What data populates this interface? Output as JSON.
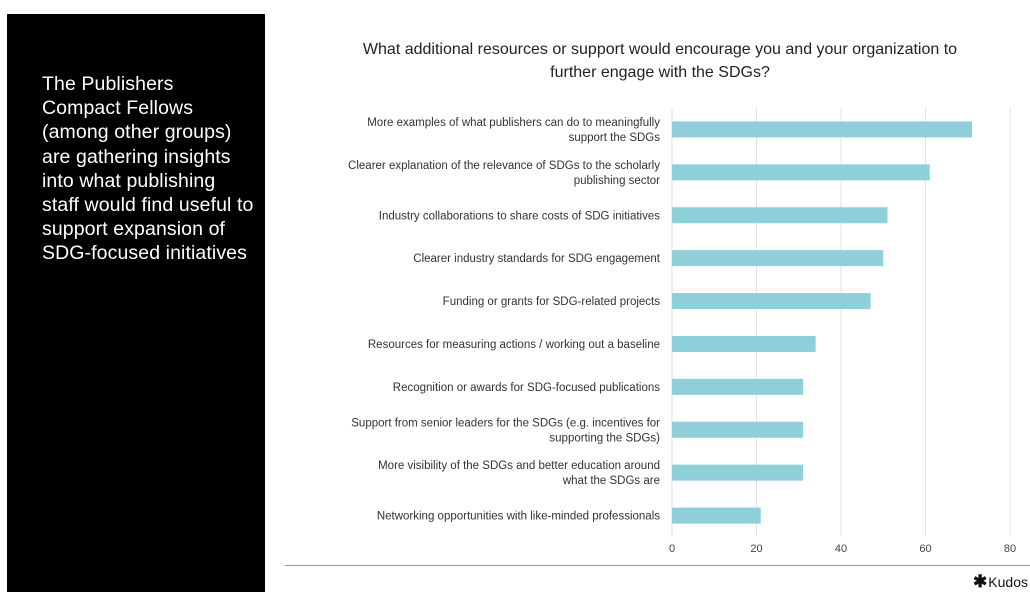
{
  "sidebar": {
    "text": "The Publishers Compact Fellows (among other groups) are gathering insights into what publishing staff would find useful to support expansion of SDG-focused initiatives"
  },
  "brand": {
    "logo_text": "Kudos",
    "logo_mark": "✱"
  },
  "colors": {
    "bar": "#8ecfd9",
    "grid": "#e2e2e2",
    "panel": "#000000"
  },
  "chart_data": {
    "type": "bar",
    "orientation": "horizontal",
    "title": "What additional resources or support would encourage you and your organization to further engage with the SDGs?",
    "categories": [
      [
        "More examples of what publishers can do to meaningfully",
        "support the SDGs"
      ],
      [
        "Clearer explanation of the relevance of SDGs to the scholarly",
        "publishing sector"
      ],
      [
        "Industry collaborations to share costs of SDG initiatives"
      ],
      [
        "Clearer industry standards for SDG engagement"
      ],
      [
        "Funding or grants for SDG-related projects"
      ],
      [
        "Resources for measuring actions / working out a baseline"
      ],
      [
        "Recognition or awards for SDG-focused publications"
      ],
      [
        "Support from senior leaders for the SDGs (e.g. incentives for",
        "supporting the SDGs)"
      ],
      [
        "More visibility of the SDGs and better education around",
        "what the SDGs are"
      ],
      [
        "Networking opportunities with like-minded professionals"
      ]
    ],
    "values": [
      71,
      61,
      51,
      50,
      47,
      34,
      31,
      31,
      31,
      21
    ],
    "xlim": [
      0,
      80
    ],
    "xticks": [
      "0",
      "20",
      "40",
      "60",
      "80"
    ],
    "grid": "vertical",
    "legend": "none"
  }
}
